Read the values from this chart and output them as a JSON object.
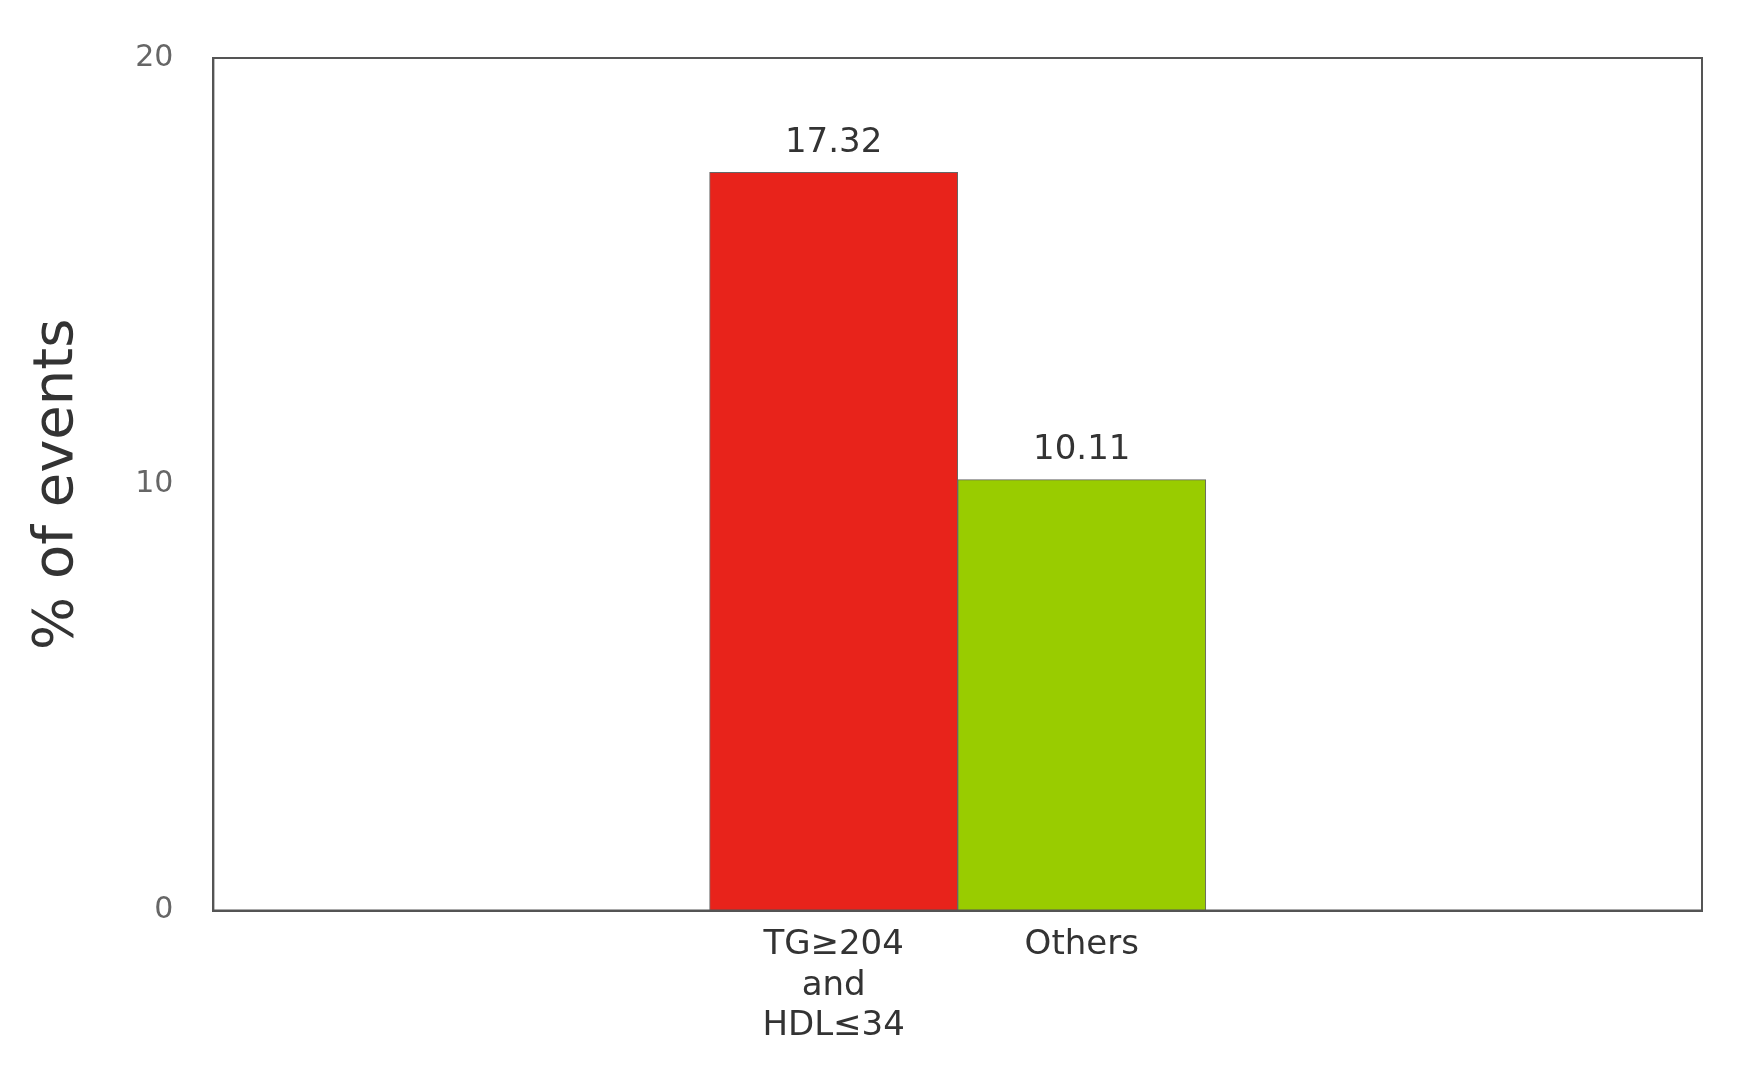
{
  "chart_data": {
    "type": "bar",
    "ylabel": "% of events",
    "categories": [
      null,
      null,
      "TG≥204 and HDL≤34",
      "Others",
      null,
      null
    ],
    "values": [
      null,
      null,
      17.32,
      10.11,
      null,
      null
    ],
    "colors": [
      "#e8231b",
      "#e8231b",
      "#e8231b",
      "#99cc00",
      "#99cc00",
      "#99cc00"
    ],
    "ylim": [
      0,
      20
    ],
    "yticks": [
      0,
      10,
      20
    ],
    "grid": false,
    "legend": false,
    "data_labels": true
  }
}
